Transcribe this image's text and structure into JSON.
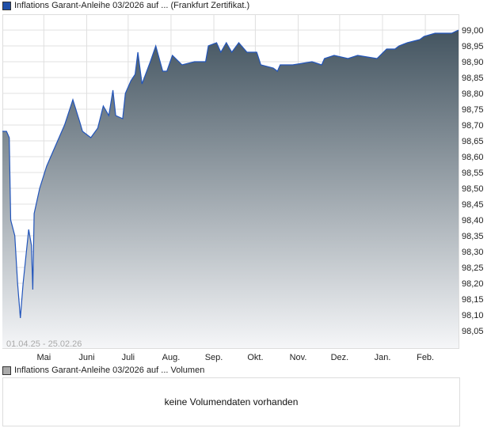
{
  "legend": {
    "title": "Inflations Garant-Anleihe 03/2026 auf ... (Frankfurt Zertifikat.)",
    "color": "#1f4fa8"
  },
  "volume": {
    "legend": "Inflations Garant-Anleihe 03/2026 auf ... Volumen",
    "color": "#aaaaaa",
    "message": "keine Volumendaten vorhanden"
  },
  "chart_data": {
    "type": "area",
    "range_label": "01.04.25 - 25.02.26",
    "xlim": [
      "2025-04-01",
      "2026-02-25"
    ],
    "ylim": [
      98.0,
      99.03
    ],
    "grid": true,
    "line_color": "#2255bb",
    "fill_top": "#435460",
    "fill_bottom": "#f5f6f8",
    "y_ticks": [
      "99,00",
      "98,95",
      "98,90",
      "98,85",
      "98,80",
      "98,75",
      "98,70",
      "98,65",
      "98,60",
      "98,55",
      "98,50",
      "98,45",
      "98,40",
      "98,35",
      "98,30",
      "98,25",
      "98,20",
      "98,15",
      "98,10",
      "98,05"
    ],
    "x_ticks": [
      {
        "label": "Mai",
        "date": "2025-05-01"
      },
      {
        "label": "Juni",
        "date": "2025-06-01"
      },
      {
        "label": "Juli",
        "date": "2025-07-01"
      },
      {
        "label": "Aug.",
        "date": "2025-08-01"
      },
      {
        "label": "Sep.",
        "date": "2025-09-01"
      },
      {
        "label": "Okt.",
        "date": "2025-10-01"
      },
      {
        "label": "Nov.",
        "date": "2025-11-01"
      },
      {
        "label": "Dez.",
        "date": "2025-12-01"
      },
      {
        "label": "Jan.",
        "date": "2026-01-01"
      },
      {
        "label": "Feb.",
        "date": "2026-02-01"
      }
    ],
    "points": [
      [
        "2025-04-01",
        98.68
      ],
      [
        "2025-04-04",
        98.68
      ],
      [
        "2025-04-06",
        98.66
      ],
      [
        "2025-04-07",
        98.4
      ],
      [
        "2025-04-10",
        98.35
      ],
      [
        "2025-04-12",
        98.2
      ],
      [
        "2025-04-14",
        98.09
      ],
      [
        "2025-04-16",
        98.2
      ],
      [
        "2025-04-20",
        98.37
      ],
      [
        "2025-04-22",
        98.32
      ],
      [
        "2025-04-23",
        98.18
      ],
      [
        "2025-04-24",
        98.42
      ],
      [
        "2025-04-28",
        98.5
      ],
      [
        "2025-05-03",
        98.57
      ],
      [
        "2025-05-09",
        98.63
      ],
      [
        "2025-05-16",
        98.7
      ],
      [
        "2025-05-22",
        98.78
      ],
      [
        "2025-05-27",
        98.71
      ],
      [
        "2025-05-29",
        98.68
      ],
      [
        "2025-06-04",
        98.66
      ],
      [
        "2025-06-09",
        98.69
      ],
      [
        "2025-06-13",
        98.76
      ],
      [
        "2025-06-17",
        98.73
      ],
      [
        "2025-06-20",
        98.81
      ],
      [
        "2025-06-22",
        98.73
      ],
      [
        "2025-06-27",
        98.72
      ],
      [
        "2025-06-29",
        98.8
      ],
      [
        "2025-07-03",
        98.84
      ],
      [
        "2025-07-06",
        98.86
      ],
      [
        "2025-07-08",
        98.93
      ],
      [
        "2025-07-11",
        98.83
      ],
      [
        "2025-07-17",
        98.9
      ],
      [
        "2025-07-21",
        98.95
      ],
      [
        "2025-07-26",
        98.87
      ],
      [
        "2025-07-29",
        98.87
      ],
      [
        "2025-08-02",
        98.92
      ],
      [
        "2025-08-09",
        98.89
      ],
      [
        "2025-08-18",
        98.9
      ],
      [
        "2025-08-26",
        98.9
      ],
      [
        "2025-08-28",
        98.95
      ],
      [
        "2025-09-03",
        98.96
      ],
      [
        "2025-09-06",
        98.93
      ],
      [
        "2025-09-10",
        98.96
      ],
      [
        "2025-09-14",
        98.93
      ],
      [
        "2025-09-19",
        98.96
      ],
      [
        "2025-09-25",
        98.93
      ],
      [
        "2025-10-02",
        98.93
      ],
      [
        "2025-10-05",
        98.89
      ],
      [
        "2025-10-14",
        98.88
      ],
      [
        "2025-10-17",
        98.87
      ],
      [
        "2025-10-19",
        98.89
      ],
      [
        "2025-10-28",
        98.89
      ],
      [
        "2025-11-11",
        98.9
      ],
      [
        "2025-11-18",
        98.89
      ],
      [
        "2025-11-20",
        98.91
      ],
      [
        "2025-11-27",
        98.92
      ],
      [
        "2025-12-07",
        98.91
      ],
      [
        "2025-12-14",
        98.92
      ],
      [
        "2025-12-28",
        98.91
      ],
      [
        "2026-01-04",
        98.94
      ],
      [
        "2026-01-10",
        98.94
      ],
      [
        "2026-01-13",
        98.95
      ],
      [
        "2026-01-19",
        98.96
      ],
      [
        "2026-01-28",
        98.97
      ],
      [
        "2026-01-31",
        98.98
      ],
      [
        "2026-02-08",
        98.99
      ],
      [
        "2026-02-20",
        98.99
      ],
      [
        "2026-02-25",
        99.0
      ]
    ]
  }
}
